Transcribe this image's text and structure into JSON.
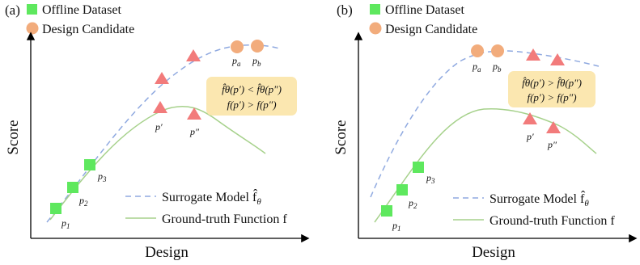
{
  "colors": {
    "dataset": "#5ee85e",
    "candidate": "#f2ac7c",
    "triangle": "#f27b7b",
    "surrogate": "#8fa9e0",
    "ground_truth": "#a6d18b",
    "annotation_bg": "#fbe7b0",
    "axis": "#000000"
  },
  "panels": [
    {
      "label": "(a)",
      "legend_dataset": "Offline Dataset",
      "legend_candidate": "Design Candidate",
      "xlabel": "Design",
      "ylabel": "Score",
      "legend_surrogate": "Surrogate Model f̂",
      "legend_surrogate_sub": "θ",
      "legend_ground_truth": "Ground-truth Function f",
      "points": {
        "p1": "p",
        "p1_sub": "1",
        "p2": "p",
        "p2_sub": "2",
        "p3": "p",
        "p3_sub": "3",
        "pa": "p",
        "pa_sub": "a",
        "pb": "p",
        "pb_sub": "b",
        "p_prime": "p′",
        "p_dprime": "p″"
      },
      "annotation": {
        "line1": "f̂θ(p′) < f̂θ(p″)",
        "line2": "f(p′) > f(p″)"
      }
    },
    {
      "label": "(b)",
      "legend_dataset": "Offline Dataset",
      "legend_candidate": "Design Candidate",
      "xlabel": "Design",
      "ylabel": "Score",
      "legend_surrogate": "Surrogate Model f̂",
      "legend_surrogate_sub": "θ",
      "legend_ground_truth": "Ground-truth Function f",
      "points": {
        "p1": "p",
        "p1_sub": "1",
        "p2": "p",
        "p2_sub": "2",
        "p3": "p",
        "p3_sub": "3",
        "pa": "p",
        "pa_sub": "a",
        "pb": "p",
        "pb_sub": "b",
        "p_prime": "p′",
        "p_dprime": "p″"
      },
      "annotation": {
        "line1": "f̂θ(p′) > f̂θ(p″)",
        "line2": "f(p′) > f(p″)"
      }
    }
  ]
}
